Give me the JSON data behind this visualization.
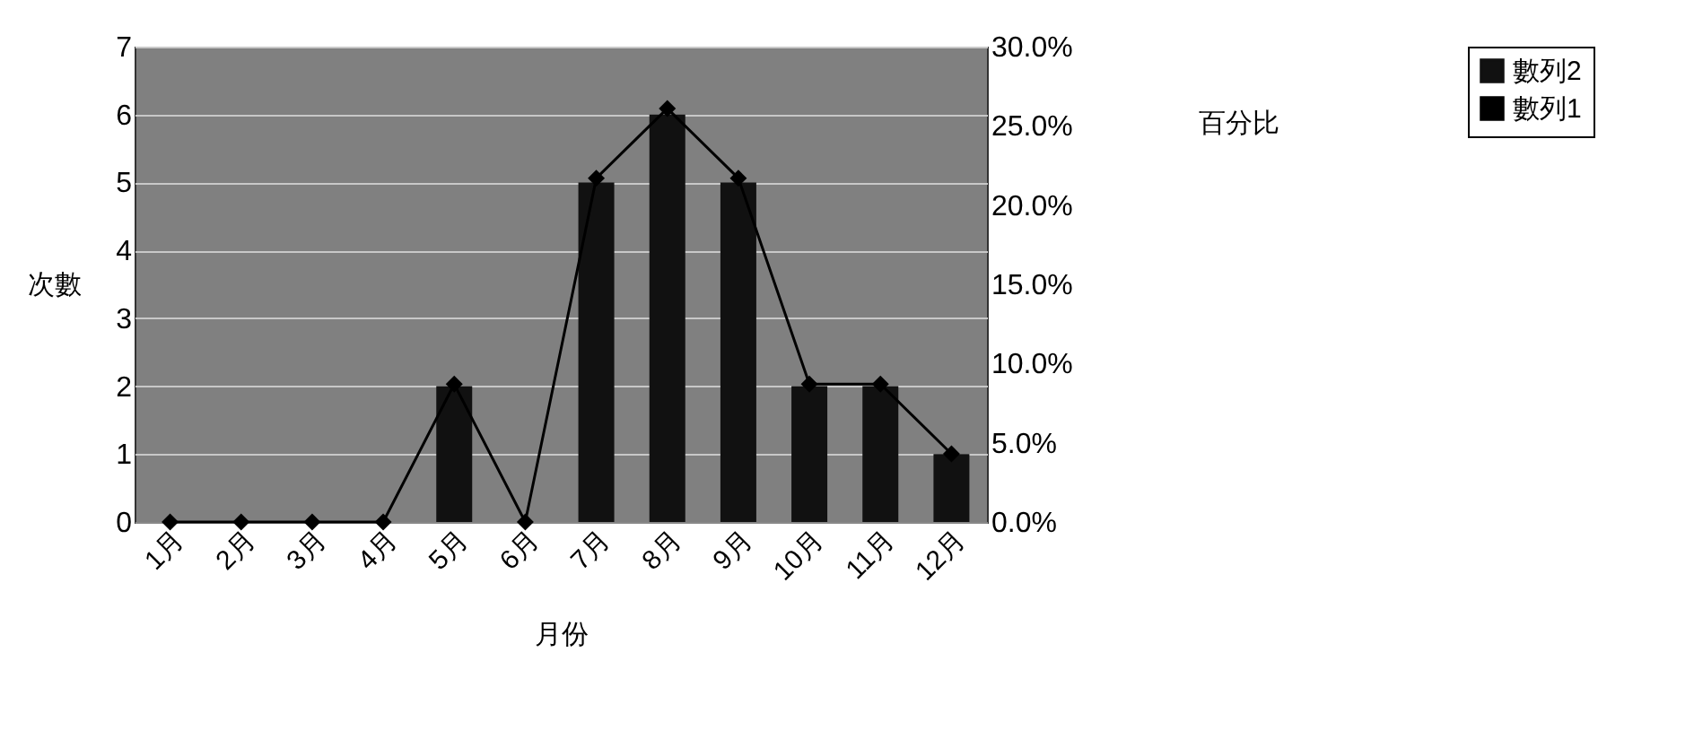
{
  "chart_data": {
    "type": "bar",
    "xlabel": "月份",
    "ylabel": "次數",
    "y2label": "百分比",
    "categories": [
      "1月",
      "2月",
      "3月",
      "4月",
      "5月",
      "6月",
      "7月",
      "8月",
      "9月",
      "10月",
      "11月",
      "12月"
    ],
    "series": [
      {
        "name": "數列2",
        "color": "#111111",
        "values": [
          0,
          0,
          0,
          0,
          2,
          0,
          5,
          6,
          5,
          2,
          2,
          1
        ]
      },
      {
        "name": "數列1",
        "type": "line",
        "axis": "y2",
        "color": "#000000",
        "values": [
          0,
          0,
          0,
          0,
          8.7,
          0,
          21.7,
          26.1,
          21.7,
          8.7,
          8.7,
          4.3
        ]
      }
    ],
    "ylim": [
      0,
      7
    ],
    "yticks": [
      0,
      1,
      2,
      3,
      4,
      5,
      6,
      7
    ],
    "y2lim": [
      0,
      30
    ],
    "y2ticks": [
      {
        "value": 0,
        "label": "0.0%"
      },
      {
        "value": 5,
        "label": "5.0%"
      },
      {
        "value": 10,
        "label": "10.0%"
      },
      {
        "value": 15,
        "label": "15.0%"
      },
      {
        "value": 20,
        "label": "20.0%"
      },
      {
        "value": 25,
        "label": "25.0%"
      },
      {
        "value": 30,
        "label": "30.0%"
      }
    ],
    "grid": "y",
    "legend": "right",
    "marker": "diamond"
  }
}
